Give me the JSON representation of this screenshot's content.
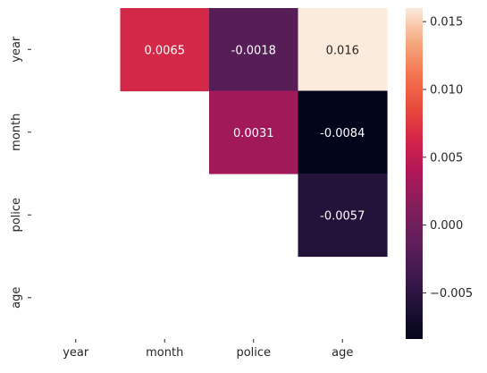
{
  "chart_data": {
    "type": "heatmap",
    "variables": [
      "year",
      "month",
      "police",
      "age"
    ],
    "x_tick_labels": [
      "year",
      "month",
      "police",
      "age"
    ],
    "y_tick_labels": [
      "year",
      "month",
      "police",
      "age"
    ],
    "mask": "lower triangle including diagonal",
    "cells": [
      {
        "row": "year",
        "col": "month",
        "value": 0.0065,
        "label": "0.0065"
      },
      {
        "row": "year",
        "col": "police",
        "value": -0.0018,
        "label": "-0.0018"
      },
      {
        "row": "year",
        "col": "age",
        "value": 0.016,
        "label": "0.016"
      },
      {
        "row": "month",
        "col": "police",
        "value": 0.0031,
        "label": "0.0031"
      },
      {
        "row": "month",
        "col": "age",
        "value": -0.0084,
        "label": "-0.0084"
      },
      {
        "row": "police",
        "col": "age",
        "value": -0.0057,
        "label": "-0.0057"
      }
    ],
    "colorbar": {
      "colormap": "rocket",
      "vmin": -0.0084,
      "vmax": 0.016,
      "ticks": [
        0.015,
        0.01,
        0.005,
        0.0,
        -0.005
      ],
      "tick_labels": [
        "0.015",
        "0.010",
        "0.005",
        "0.000",
        "−0.005"
      ]
    },
    "title": "",
    "xlabel": "",
    "ylabel": ""
  }
}
